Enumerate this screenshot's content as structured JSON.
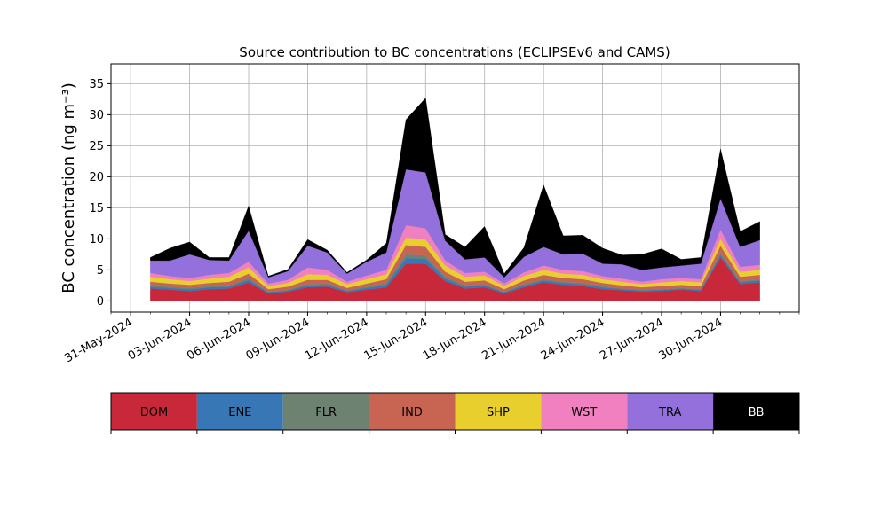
{
  "chart_data": {
    "type": "area",
    "stacked": true,
    "title": "Source contribution to BC concentrations (ECLIPSEv6 and CAMS)",
    "xlabel": "",
    "ylabel": "BC concentration (ng m⁻³)",
    "xlim": [
      "2024-05-30",
      "2024-07-04"
    ],
    "ylim": [
      -1.8,
      38.2
    ],
    "grid": true,
    "x_ticks": [
      "31-May-2024",
      "03-Jun-2024",
      "06-Jun-2024",
      "09-Jun-2024",
      "12-Jun-2024",
      "15-Jun-2024",
      "18-Jun-2024",
      "21-Jun-2024",
      "24-Jun-2024",
      "27-Jun-2024",
      "30-Jun-2024"
    ],
    "y_ticks": [
      0,
      5,
      10,
      15,
      20,
      25,
      30,
      35
    ],
    "x": [
      "2024-06-01",
      "2024-06-02",
      "2024-06-03",
      "2024-06-04",
      "2024-06-05",
      "2024-06-06",
      "2024-06-07",
      "2024-06-08",
      "2024-06-09",
      "2024-06-10",
      "2024-06-11",
      "2024-06-12",
      "2024-06-13",
      "2024-06-14",
      "2024-06-15",
      "2024-06-16",
      "2024-06-17",
      "2024-06-18",
      "2024-06-19",
      "2024-06-20",
      "2024-06-21",
      "2024-06-22",
      "2024-06-23",
      "2024-06-24",
      "2024-06-25",
      "2024-06-26",
      "2024-06-27",
      "2024-06-28",
      "2024-06-29",
      "2024-06-30",
      "2024-07-01",
      "2024-07-02"
    ],
    "series": [
      {
        "name": "DOM",
        "color": "#c8283a",
        "values": [
          2.0,
          1.8,
          1.6,
          1.9,
          2.0,
          3.0,
          1.2,
          1.5,
          2.2,
          2.3,
          1.4,
          1.8,
          2.2,
          6.0,
          6.0,
          3.2,
          2.0,
          2.2,
          1.2,
          2.2,
          3.0,
          2.6,
          2.4,
          1.9,
          1.7,
          1.5,
          1.6,
          1.8,
          1.6,
          7.0,
          2.7,
          3.0
        ]
      },
      {
        "name": "ENE",
        "color": "#3877b5",
        "values": [
          0.3,
          0.3,
          0.3,
          0.3,
          0.3,
          0.4,
          0.2,
          0.2,
          0.3,
          0.3,
          0.2,
          0.3,
          0.4,
          0.9,
          0.8,
          0.4,
          0.3,
          0.3,
          0.2,
          0.3,
          0.3,
          0.3,
          0.3,
          0.3,
          0.2,
          0.2,
          0.2,
          0.2,
          0.2,
          0.4,
          0.3,
          0.3
        ]
      },
      {
        "name": "FLR",
        "color": "#6e8272",
        "values": [
          0.2,
          0.2,
          0.2,
          0.2,
          0.2,
          0.3,
          0.1,
          0.1,
          0.2,
          0.2,
          0.1,
          0.2,
          0.3,
          0.6,
          0.5,
          0.3,
          0.2,
          0.2,
          0.1,
          0.2,
          0.2,
          0.2,
          0.2,
          0.2,
          0.1,
          0.1,
          0.1,
          0.1,
          0.1,
          0.3,
          0.2,
          0.2
        ]
      },
      {
        "name": "IND",
        "color": "#c86452",
        "values": [
          0.6,
          0.5,
          0.5,
          0.5,
          0.6,
          0.7,
          0.4,
          0.5,
          0.7,
          0.6,
          0.4,
          0.5,
          0.6,
          1.5,
          1.4,
          0.8,
          0.6,
          0.6,
          0.4,
          0.6,
          0.7,
          0.6,
          0.6,
          0.5,
          0.5,
          0.4,
          0.5,
          0.5,
          0.5,
          1.2,
          0.7,
          0.7
        ]
      },
      {
        "name": "SHP",
        "color": "#e8cf2e",
        "values": [
          0.8,
          0.7,
          0.6,
          0.7,
          0.8,
          1.0,
          0.5,
          0.6,
          0.9,
          0.8,
          0.6,
          0.7,
          0.8,
          1.2,
          1.2,
          1.0,
          0.8,
          0.8,
          0.5,
          0.7,
          0.8,
          0.7,
          0.7,
          0.6,
          0.6,
          0.5,
          0.6,
          0.6,
          0.6,
          1.1,
          0.8,
          0.8
        ]
      },
      {
        "name": "WST",
        "color": "#f080c0",
        "values": [
          0.6,
          0.5,
          0.5,
          0.6,
          0.6,
          0.9,
          0.4,
          0.5,
          1.1,
          0.8,
          0.4,
          0.6,
          0.7,
          2.0,
          1.8,
          0.8,
          0.6,
          0.6,
          0.4,
          0.6,
          0.7,
          0.6,
          0.6,
          0.5,
          0.5,
          0.4,
          0.5,
          0.5,
          0.5,
          1.5,
          0.8,
          0.8
        ]
      },
      {
        "name": "TRA",
        "color": "#9370db",
        "values": [
          2.0,
          2.5,
          3.8,
          2.4,
          2.0,
          5.0,
          1.0,
          1.4,
          3.5,
          2.8,
          1.3,
          2.2,
          2.8,
          9.0,
          9.0,
          3.2,
          2.2,
          2.3,
          1.0,
          2.5,
          3.0,
          2.5,
          2.8,
          2.0,
          2.3,
          1.9,
          1.9,
          2.0,
          2.5,
          5.0,
          3.2,
          4.0
        ]
      },
      {
        "name": "BB",
        "color": "#000000",
        "values": [
          0.5,
          2.0,
          2.0,
          0.4,
          0.5,
          4.0,
          0.2,
          0.3,
          1.0,
          0.4,
          0.2,
          0.3,
          1.5,
          8.0,
          12.0,
          1.0,
          2.0,
          5.0,
          0.6,
          1.5,
          10.0,
          3.0,
          3.0,
          2.5,
          1.5,
          2.5,
          3.0,
          1.0,
          1.0,
          8.0,
          2.5,
          3.0
        ]
      }
    ]
  }
}
